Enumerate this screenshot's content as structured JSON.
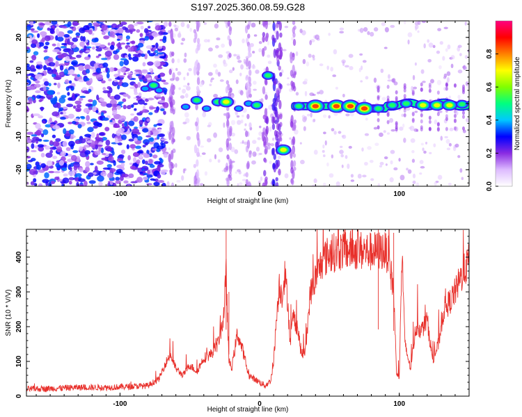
{
  "title": "S197.2025.360.08.59.G28",
  "chart_data": [
    {
      "type": "heatmap",
      "xlabel": "Height of straight line (km)",
      "ylabel": "Frequency (Hz)",
      "xlim": [
        -167,
        150
      ],
      "ylim": [
        -25,
        25
      ],
      "xticks": [
        -100,
        0,
        100
      ],
      "yticks": [
        -20,
        -10,
        0,
        10,
        20
      ],
      "colorbar": {
        "label": "Normalized spectral amplitude",
        "range": [
          0,
          1
        ],
        "ticks": [
          0.0,
          0.2,
          0.4,
          0.6,
          0.8
        ],
        "colors": [
          "#ffffff",
          "#ddbbff",
          "#8a2be2",
          "#0000ff",
          "#00c8ff",
          "#00ff80",
          "#80ff00",
          "#ffff00",
          "#ff8000",
          "#ff0000",
          "#ff0080"
        ]
      },
      "ridge": [
        {
          "x": -82,
          "f": 4.5,
          "a": 0.45
        },
        {
          "x": -76,
          "f": 5.5,
          "a": 0.5
        },
        {
          "x": -72,
          "f": 4,
          "a": 0.4
        },
        {
          "x": -53,
          "f": -1,
          "a": 0.4
        },
        {
          "x": -45,
          "f": 1,
          "a": 0.5
        },
        {
          "x": -38,
          "f": -1.5,
          "a": 0.45
        },
        {
          "x": -30,
          "f": 0.5,
          "a": 0.5
        },
        {
          "x": -24,
          "f": 0.5,
          "a": 0.7
        },
        {
          "x": -15,
          "f": -1.5,
          "a": 0.45
        },
        {
          "x": -8,
          "f": 0,
          "a": 0.45
        },
        {
          "x": -2,
          "f": -0.5,
          "a": 0.5
        },
        {
          "x": 6,
          "f": 8.5,
          "a": 0.5
        },
        {
          "x": 17,
          "f": -14,
          "a": 0.75
        },
        {
          "x": 28,
          "f": -0.8,
          "a": 0.6
        },
        {
          "x": 40,
          "f": -0.8,
          "a": 0.9
        },
        {
          "x": 55,
          "f": -0.8,
          "a": 0.95
        },
        {
          "x": 65,
          "f": -0.8,
          "a": 0.9
        },
        {
          "x": 75,
          "f": -1.5,
          "a": 0.85
        },
        {
          "x": 85,
          "f": -1.5,
          "a": 0.5
        },
        {
          "x": 95,
          "f": -0.5,
          "a": 0.6
        },
        {
          "x": 105,
          "f": 0,
          "a": 0.65
        },
        {
          "x": 117,
          "f": -0.5,
          "a": 0.8
        },
        {
          "x": 127,
          "f": -0.5,
          "a": 0.75
        },
        {
          "x": 136,
          "f": -0.5,
          "a": 0.8
        },
        {
          "x": 145,
          "f": -0.2,
          "a": 0.5
        }
      ]
    },
    {
      "type": "line",
      "xlabel": "Height of straight line (km)",
      "ylabel": "SNR (10 * V/V)",
      "xlim": [
        -167,
        150
      ],
      "ylim": [
        0,
        480
      ],
      "xticks": [
        -100,
        0,
        100
      ],
      "yticks": [
        0,
        100,
        200,
        300,
        400
      ],
      "color": "#e8302b",
      "series": [
        {
          "name": "SNR",
          "x": [
            -167,
            -150,
            -130,
            -110,
            -90,
            -80,
            -72,
            -68,
            -64,
            -60,
            -55,
            -50,
            -45,
            -40,
            -35,
            -30,
            -26,
            -24,
            -22,
            -20,
            -16,
            -12,
            -8,
            -4,
            0,
            4,
            8,
            10,
            12,
            14,
            16,
            18,
            20,
            22,
            24,
            27,
            30,
            33,
            36,
            40,
            45,
            50,
            60,
            70,
            80,
            88,
            92,
            96,
            98,
            100,
            102,
            104,
            108,
            112,
            116,
            120,
            124,
            128,
            132,
            136,
            140,
            144,
            150
          ],
          "y": [
            20,
            22,
            25,
            25,
            28,
            30,
            50,
            90,
            120,
            80,
            60,
            90,
            70,
            110,
            120,
            150,
            220,
            350,
            100,
            80,
            180,
            130,
            60,
            50,
            40,
            30,
            45,
            100,
            220,
            320,
            290,
            350,
            280,
            150,
            230,
            200,
            120,
            130,
            290,
            340,
            390,
            410,
            420,
            420,
            415,
            420,
            410,
            300,
            70,
            55,
            420,
            150,
            80,
            200,
            190,
            220,
            100,
            150,
            250,
            270,
            300,
            340,
            390
          ]
        }
      ]
    }
  ]
}
